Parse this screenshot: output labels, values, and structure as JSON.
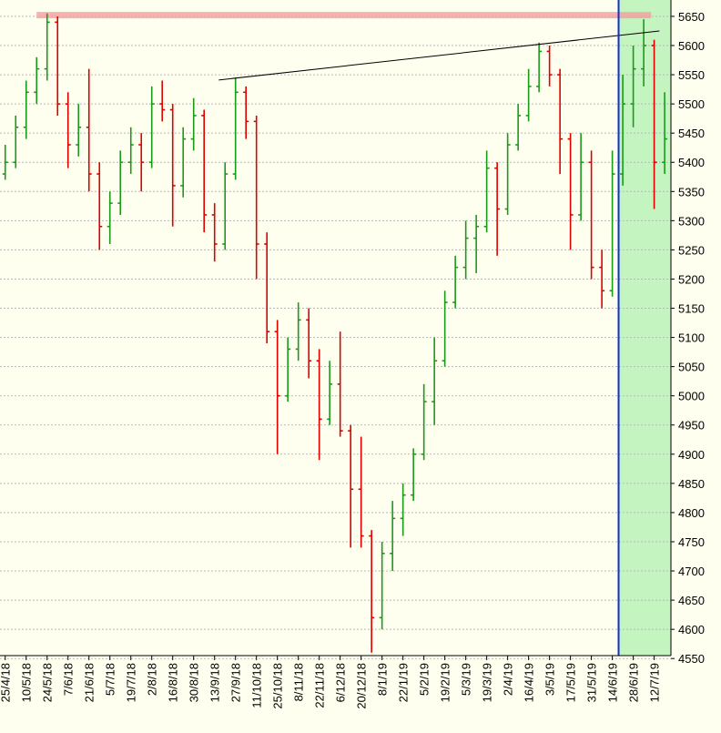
{
  "chart_data": {
    "type": "ohlc",
    "up_color": "#1a9a1a",
    "down_color": "#e00000",
    "xlim": [
      -0.5,
      63.6
    ],
    "ylim": [
      4555,
      5678
    ],
    "grid": true,
    "yticks": [
      4550,
      4600,
      4650,
      4700,
      4750,
      4800,
      4850,
      4900,
      4950,
      5000,
      5050,
      5100,
      5150,
      5200,
      5250,
      5300,
      5350,
      5400,
      5450,
      5500,
      5550,
      5600,
      5650
    ],
    "xticks": [
      {
        "value": 0,
        "label": "25/4/18"
      },
      {
        "value": 2,
        "label": "10/5/18"
      },
      {
        "value": 4,
        "label": "24/5/18"
      },
      {
        "value": 6,
        "label": "7/6/18"
      },
      {
        "value": 8,
        "label": "21/6/18"
      },
      {
        "value": 10,
        "label": "5/7/18"
      },
      {
        "value": 12,
        "label": "19/7/18"
      },
      {
        "value": 14,
        "label": "2/8/18"
      },
      {
        "value": 16,
        "label": "16/8/18"
      },
      {
        "value": 18,
        "label": "30/8/18"
      },
      {
        "value": 20,
        "label": "13/9/18"
      },
      {
        "value": 22,
        "label": "27/9/18"
      },
      {
        "value": 24,
        "label": "11/10/18"
      },
      {
        "value": 26,
        "label": "25/10/18"
      },
      {
        "value": 28,
        "label": "8/11/18"
      },
      {
        "value": 30,
        "label": "22/11/18"
      },
      {
        "value": 32,
        "label": "6/12/18"
      },
      {
        "value": 34,
        "label": "20/12/18"
      },
      {
        "value": 36,
        "label": "8/1/19"
      },
      {
        "value": 38,
        "label": "22/1/19"
      },
      {
        "value": 40,
        "label": "5/2/19"
      },
      {
        "value": 42,
        "label": "19/2/19"
      },
      {
        "value": 44,
        "label": "5/3/19"
      },
      {
        "value": 46,
        "label": "19/3/19"
      },
      {
        "value": 48,
        "label": "2/4/19"
      },
      {
        "value": 50,
        "label": "16/4/19"
      },
      {
        "value": 52,
        "label": "3/5/19"
      },
      {
        "value": 54,
        "label": "17/5/19"
      },
      {
        "value": 56,
        "label": "31/5/19"
      },
      {
        "value": 58,
        "label": "14/6/19"
      },
      {
        "value": 60,
        "label": "28/6/19"
      },
      {
        "value": 62,
        "label": "12/7/19"
      }
    ],
    "open": [
      5380,
      5400,
      5460,
      5520,
      5560,
      5640,
      5500,
      5430,
      5460,
      5380,
      5290,
      5330,
      5400,
      5430,
      5400,
      5500,
      5490,
      5360,
      5440,
      5480,
      5310,
      5260,
      5380,
      5520,
      5470,
      5260,
      5110,
      5000,
      5080,
      5130,
      5060,
      4960,
      5020,
      4940,
      4840,
      4760,
      4620,
      4730,
      4790,
      4830,
      4900,
      4990,
      5060,
      5160,
      5220,
      5270,
      5290,
      5390,
      5320,
      5430,
      5480,
      5530,
      5590,
      5550,
      5440,
      5310,
      5400,
      5220,
      5180,
      5380,
      5500,
      5560,
      5600,
      5400
    ],
    "high": [
      5430,
      5480,
      5540,
      5580,
      5655,
      5650,
      5520,
      5500,
      5560,
      5400,
      5350,
      5420,
      5460,
      5450,
      5530,
      5540,
      5500,
      5460,
      5510,
      5490,
      5330,
      5400,
      5545,
      5530,
      5480,
      5280,
      5130,
      5100,
      5160,
      5150,
      5080,
      5060,
      5110,
      4950,
      4930,
      4770,
      4750,
      4820,
      4850,
      4910,
      5020,
      5100,
      5180,
      5240,
      5300,
      5310,
      5420,
      5400,
      5450,
      5500,
      5560,
      5605,
      5600,
      5560,
      5450,
      5450,
      5420,
      5250,
      5420,
      5550,
      5600,
      5645,
      5610,
      5520
    ],
    "low": [
      5370,
      5390,
      5440,
      5500,
      5540,
      5480,
      5390,
      5410,
      5350,
      5250,
      5260,
      5310,
      5380,
      5350,
      5390,
      5470,
      5290,
      5340,
      5420,
      5280,
      5230,
      5250,
      5370,
      5440,
      5200,
      5090,
      4900,
      4990,
      5060,
      5030,
      4890,
      4950,
      4930,
      4740,
      4740,
      4560,
      4600,
      4700,
      4760,
      4820,
      4890,
      4950,
      5050,
      5150,
      5200,
      5210,
      5280,
      5240,
      5310,
      5420,
      5470,
      5520,
      5530,
      5380,
      5250,
      5300,
      5200,
      5150,
      5170,
      5360,
      5460,
      5530,
      5320,
      5380
    ],
    "close": [
      5400,
      5460,
      5520,
      5560,
      5640,
      5500,
      5430,
      5460,
      5380,
      5290,
      5330,
      5400,
      5430,
      5400,
      5500,
      5490,
      5360,
      5440,
      5480,
      5310,
      5260,
      5380,
      5520,
      5470,
      5260,
      5110,
      5000,
      5080,
      5130,
      5060,
      4960,
      5020,
      4940,
      4840,
      4760,
      4620,
      4730,
      4790,
      4830,
      4900,
      4990,
      5060,
      5160,
      5220,
      5270,
      5290,
      5390,
      5320,
      5430,
      5480,
      5530,
      5590,
      5550,
      5440,
      5310,
      5400,
      5220,
      5180,
      5380,
      5500,
      5560,
      5600,
      5400,
      5440
    ],
    "highlight": {
      "x": [
        58.6,
        63.6
      ],
      "color": "#c4f5c0",
      "edge_color": "#1030d0"
    },
    "resistance": {
      "x": [
        3,
        61.7
      ],
      "y": 5652,
      "color": "#f4a0a0"
    },
    "trendline": {
      "x": [
        20.4,
        62.5
      ],
      "y": [
        5541,
        5625
      ],
      "color": "#000000"
    }
  }
}
